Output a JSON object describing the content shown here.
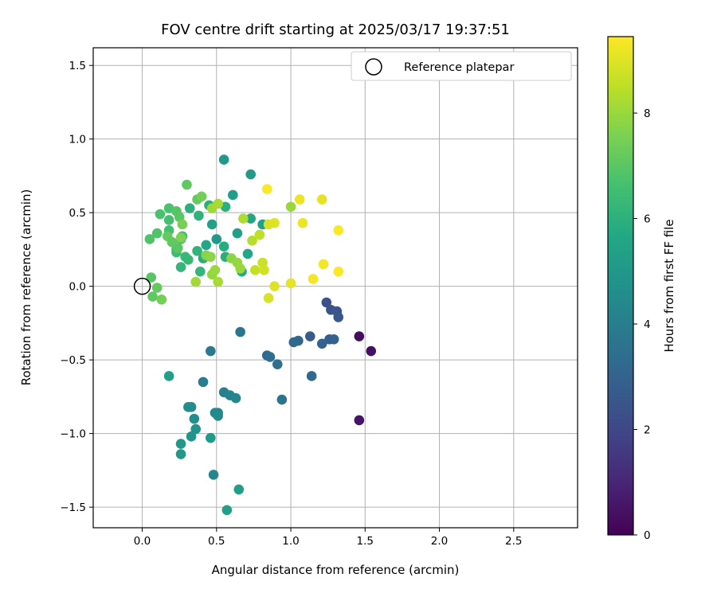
{
  "chart_data": {
    "type": "scatter",
    "title": "FOV centre drift starting at 2025/03/17 19:37:51",
    "xlabel": "Angular distance from reference (arcmin)",
    "ylabel": "Rotation from reference (arcmin)",
    "xlim": [
      -0.33,
      2.93
    ],
    "ylim": [
      -1.64,
      1.62
    ],
    "xticks": [
      0.0,
      0.5,
      1.0,
      1.5,
      2.0,
      2.5
    ],
    "xtick_labels": [
      "0.0",
      "0.5",
      "1.0",
      "1.5",
      "2.0",
      "2.5"
    ],
    "yticks": [
      -1.5,
      -1.0,
      -0.5,
      0.0,
      0.5,
      1.0,
      1.5
    ],
    "ytick_labels": [
      "−1.5",
      "−1.0",
      "−0.5",
      "0.0",
      "0.5",
      "1.0",
      "1.5"
    ],
    "grid": true,
    "legend": {
      "placement": "top-right",
      "entries": [
        "Reference platepar"
      ]
    },
    "reference_point": {
      "x": 0.0,
      "y": 0.0
    },
    "colorbar": {
      "label": "Hours from first FF file",
      "colormap": "viridis",
      "range": [
        0,
        9.45
      ],
      "ticks": [
        0,
        2,
        4,
        6,
        8
      ],
      "tick_labels": [
        "0",
        "2",
        "4",
        "6",
        "8"
      ]
    },
    "points": [
      {
        "x": 1.46,
        "y": -0.34,
        "h": 0.3
      },
      {
        "x": 1.54,
        "y": -0.44,
        "h": 0.4
      },
      {
        "x": 1.46,
        "y": -0.91,
        "h": 0.5
      },
      {
        "x": 1.24,
        "y": -0.11,
        "h": 2.3
      },
      {
        "x": 1.27,
        "y": -0.16,
        "h": 2.4
      },
      {
        "x": 1.31,
        "y": -0.17,
        "h": 2.5
      },
      {
        "x": 1.32,
        "y": -0.21,
        "h": 2.6
      },
      {
        "x": 1.13,
        "y": -0.34,
        "h": 2.7
      },
      {
        "x": 1.26,
        "y": -0.36,
        "h": 2.8
      },
      {
        "x": 1.29,
        "y": -0.36,
        "h": 2.9
      },
      {
        "x": 1.21,
        "y": -0.39,
        "h": 3.0
      },
      {
        "x": 1.05,
        "y": -0.37,
        "h": 3.1
      },
      {
        "x": 1.02,
        "y": -0.38,
        "h": 3.2
      },
      {
        "x": 1.14,
        "y": -0.61,
        "h": 3.2
      },
      {
        "x": 0.84,
        "y": -0.47,
        "h": 3.3
      },
      {
        "x": 0.86,
        "y": -0.48,
        "h": 3.4
      },
      {
        "x": 0.91,
        "y": -0.53,
        "h": 3.5
      },
      {
        "x": 0.94,
        "y": -0.77,
        "h": 3.6
      },
      {
        "x": 0.66,
        "y": -0.31,
        "h": 3.7
      },
      {
        "x": 0.46,
        "y": -0.44,
        "h": 3.8
      },
      {
        "x": 0.41,
        "y": -0.65,
        "h": 3.9
      },
      {
        "x": 0.55,
        "y": -0.72,
        "h": 4.1
      },
      {
        "x": 0.59,
        "y": -0.74,
        "h": 4.2
      },
      {
        "x": 0.63,
        "y": -0.76,
        "h": 4.3
      },
      {
        "x": 0.49,
        "y": -0.86,
        "h": 4.4
      },
      {
        "x": 0.51,
        "y": -0.86,
        "h": 4.4
      },
      {
        "x": 0.51,
        "y": -0.88,
        "h": 4.5
      },
      {
        "x": 0.31,
        "y": -0.82,
        "h": 4.6
      },
      {
        "x": 0.33,
        "y": -0.82,
        "h": 4.6
      },
      {
        "x": 0.35,
        "y": -0.9,
        "h": 4.7
      },
      {
        "x": 0.36,
        "y": -0.97,
        "h": 4.8
      },
      {
        "x": 0.33,
        "y": -1.02,
        "h": 4.9
      },
      {
        "x": 0.26,
        "y": -1.07,
        "h": 5.0
      },
      {
        "x": 0.26,
        "y": -1.14,
        "h": 5.0
      },
      {
        "x": 0.46,
        "y": -1.03,
        "h": 5.1
      },
      {
        "x": 0.48,
        "y": -1.28,
        "h": 4.3
      },
      {
        "x": 0.65,
        "y": -1.38,
        "h": 5.2
      },
      {
        "x": 0.57,
        "y": -1.52,
        "h": 5.3
      },
      {
        "x": 0.18,
        "y": -0.61,
        "h": 5.3
      },
      {
        "x": 0.55,
        "y": 0.86,
        "h": 5.0
      },
      {
        "x": 0.73,
        "y": 0.76,
        "h": 5.1
      },
      {
        "x": 0.61,
        "y": 0.62,
        "h": 5.2
      },
      {
        "x": 0.64,
        "y": 0.36,
        "h": 5.3
      },
      {
        "x": 0.81,
        "y": 0.42,
        "h": 5.4
      },
      {
        "x": 0.73,
        "y": 0.46,
        "h": 5.5
      },
      {
        "x": 0.71,
        "y": 0.22,
        "h": 5.6
      },
      {
        "x": 0.67,
        "y": 0.1,
        "h": 5.7
      },
      {
        "x": 0.55,
        "y": 0.27,
        "h": 5.8
      },
      {
        "x": 0.56,
        "y": 0.2,
        "h": 5.9
      },
      {
        "x": 0.5,
        "y": 0.32,
        "h": 5.0
      },
      {
        "x": 0.47,
        "y": 0.42,
        "h": 5.4
      },
      {
        "x": 0.43,
        "y": 0.28,
        "h": 5.6
      },
      {
        "x": 0.41,
        "y": 0.19,
        "h": 5.8
      },
      {
        "x": 0.45,
        "y": 0.55,
        "h": 5.9
      },
      {
        "x": 0.56,
        "y": 0.54,
        "h": 6.0
      },
      {
        "x": 0.32,
        "y": 0.53,
        "h": 6.0
      },
      {
        "x": 0.38,
        "y": 0.48,
        "h": 6.1
      },
      {
        "x": 0.37,
        "y": 0.24,
        "h": 6.1
      },
      {
        "x": 0.39,
        "y": 0.1,
        "h": 6.2
      },
      {
        "x": 0.26,
        "y": 0.13,
        "h": 6.2
      },
      {
        "x": 0.31,
        "y": 0.18,
        "h": 6.3
      },
      {
        "x": 0.29,
        "y": 0.2,
        "h": 6.3
      },
      {
        "x": 0.27,
        "y": 0.34,
        "h": 6.4
      },
      {
        "x": 0.26,
        "y": 0.32,
        "h": 6.4
      },
      {
        "x": 0.23,
        "y": 0.23,
        "h": 6.5
      },
      {
        "x": 0.23,
        "y": 0.25,
        "h": 6.5
      },
      {
        "x": 0.18,
        "y": 0.38,
        "h": 6.6
      },
      {
        "x": 0.18,
        "y": 0.45,
        "h": 6.6
      },
      {
        "x": 0.18,
        "y": 0.53,
        "h": 6.7
      },
      {
        "x": 0.12,
        "y": 0.49,
        "h": 6.7
      },
      {
        "x": 0.1,
        "y": 0.36,
        "h": 6.8
      },
      {
        "x": 0.05,
        "y": 0.32,
        "h": 6.8
      },
      {
        "x": 0.23,
        "y": 0.51,
        "h": 6.9
      },
      {
        "x": 0.25,
        "y": 0.47,
        "h": 7.0
      },
      {
        "x": 0.2,
        "y": 0.3,
        "h": 7.1
      },
      {
        "x": 0.17,
        "y": 0.34,
        "h": 7.2
      },
      {
        "x": 0.24,
        "y": 0.26,
        "h": 7.0
      },
      {
        "x": 0.3,
        "y": 0.69,
        "h": 7.1
      },
      {
        "x": 0.37,
        "y": 0.59,
        "h": 7.2
      },
      {
        "x": 0.4,
        "y": 0.61,
        "h": 7.4
      },
      {
        "x": 0.27,
        "y": 0.42,
        "h": 7.5
      },
      {
        "x": 0.26,
        "y": 0.33,
        "h": 7.6
      },
      {
        "x": 0.43,
        "y": 0.21,
        "h": 7.7
      },
      {
        "x": 0.46,
        "y": 0.2,
        "h": 7.8
      },
      {
        "x": 0.47,
        "y": 0.08,
        "h": 7.9
      },
      {
        "x": 0.49,
        "y": 0.11,
        "h": 8.0
      },
      {
        "x": 0.36,
        "y": 0.03,
        "h": 8.1
      },
      {
        "x": 0.51,
        "y": 0.03,
        "h": 8.2
      },
      {
        "x": 0.6,
        "y": 0.19,
        "h": 7.8
      },
      {
        "x": 0.64,
        "y": 0.16,
        "h": 7.9
      },
      {
        "x": 0.66,
        "y": 0.12,
        "h": 8.0
      },
      {
        "x": 0.47,
        "y": 0.53,
        "h": 8.1
      },
      {
        "x": 0.51,
        "y": 0.56,
        "h": 8.2
      },
      {
        "x": 0.68,
        "y": 0.46,
        "h": 8.3
      },
      {
        "x": 0.74,
        "y": 0.31,
        "h": 8.4
      },
      {
        "x": 0.79,
        "y": 0.35,
        "h": 8.5
      },
      {
        "x": 0.76,
        "y": 0.11,
        "h": 8.6
      },
      {
        "x": 0.81,
        "y": 0.16,
        "h": 8.7
      },
      {
        "x": 0.82,
        "y": 0.11,
        "h": 8.8
      },
      {
        "x": 0.85,
        "y": 0.42,
        "h": 8.9
      },
      {
        "x": 0.89,
        "y": 0.43,
        "h": 9.0
      },
      {
        "x": 0.85,
        "y": -0.08,
        "h": 8.9
      },
      {
        "x": 0.89,
        "y": 0.0,
        "h": 9.0
      },
      {
        "x": 1.0,
        "y": 0.54,
        "h": 8.0
      },
      {
        "x": 0.06,
        "y": 0.06,
        "h": 7.0
      },
      {
        "x": 0.07,
        "y": -0.07,
        "h": 7.1
      },
      {
        "x": 0.1,
        "y": -0.01,
        "h": 7.2
      },
      {
        "x": 0.13,
        "y": -0.09,
        "h": 7.4
      },
      {
        "x": 1.0,
        "y": 0.02,
        "h": 9.1
      },
      {
        "x": 1.06,
        "y": 0.59,
        "h": 9.2
      },
      {
        "x": 1.08,
        "y": 0.43,
        "h": 9.2
      },
      {
        "x": 1.21,
        "y": 0.59,
        "h": 9.1
      },
      {
        "x": 1.15,
        "y": 0.05,
        "h": 9.3
      },
      {
        "x": 1.22,
        "y": 0.15,
        "h": 9.3
      },
      {
        "x": 1.32,
        "y": 0.38,
        "h": 9.4
      },
      {
        "x": 1.32,
        "y": 0.1,
        "h": 9.4
      },
      {
        "x": 0.84,
        "y": 0.66,
        "h": 9.4
      }
    ]
  }
}
